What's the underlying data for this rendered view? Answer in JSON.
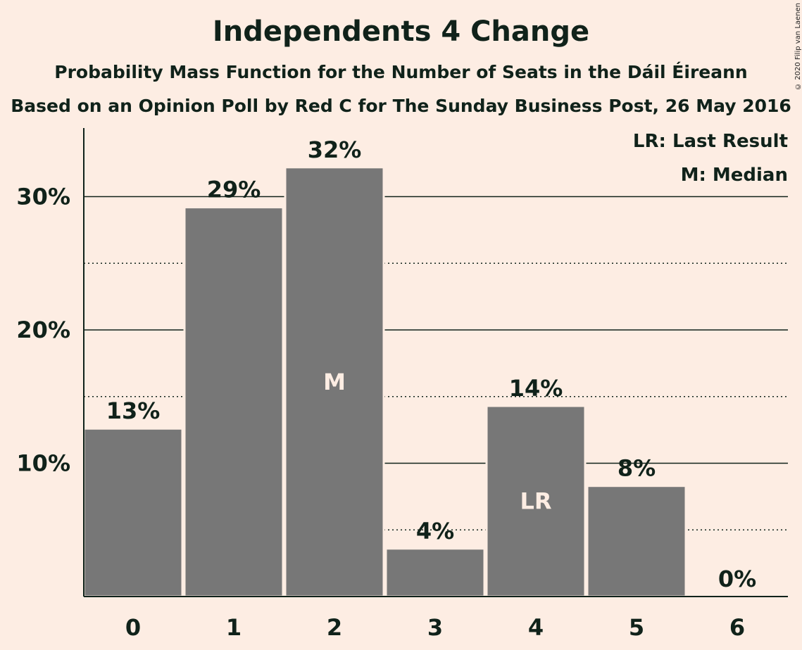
{
  "colors": {
    "background": "#FDEDE3",
    "bar": "#777777",
    "text": "#10221a",
    "bar_label": "#FDEDE3"
  },
  "credit": "© 2020 Filip van Laenen",
  "chart_data": {
    "type": "bar",
    "title": "Independents 4 Change",
    "subtitle": "Probability Mass Function for the Number of Seats in the Dáil Éireann",
    "subtitle2": "Based on an Opinion Poll by Red C for The Sunday Business Post, 26 May 2016",
    "categories": [
      "0",
      "1",
      "2",
      "3",
      "4",
      "5",
      "6"
    ],
    "values": [
      12.6,
      29.2,
      32.2,
      3.6,
      14.3,
      8.3,
      0
    ],
    "value_labels": [
      "13%",
      "29%",
      "32%",
      "4%",
      "14%",
      "8%",
      "0%"
    ],
    "ylim": [
      0,
      35
    ],
    "yticks": [
      10,
      20,
      30
    ],
    "ytick_labels": [
      "10%",
      "20%",
      "30%"
    ],
    "grid_solid": [
      10,
      20,
      30
    ],
    "grid_dotted": [
      5,
      15,
      25
    ],
    "bar_annotations": [
      {
        "category": "2",
        "text": "M"
      },
      {
        "category": "4",
        "text": "LR"
      }
    ],
    "legend": [
      "LR: Last Result",
      "M: Median"
    ],
    "legend_position": "top-right"
  }
}
